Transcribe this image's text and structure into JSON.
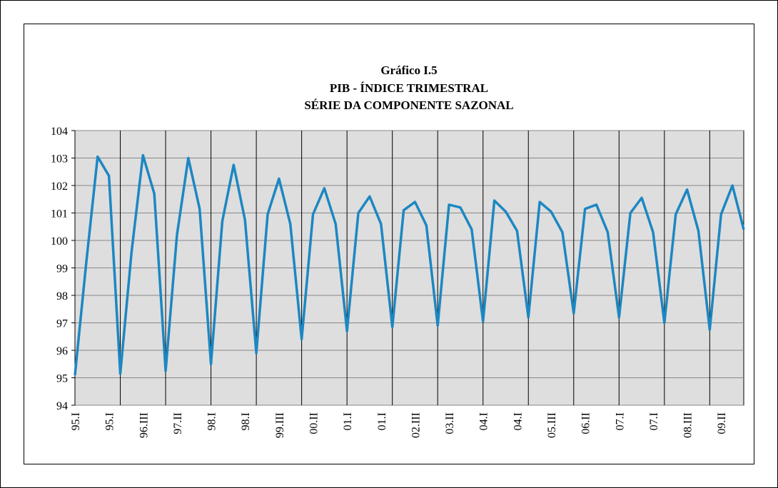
{
  "chart_data": {
    "type": "line",
    "title": [
      "Gráfico I.5",
      "PIB - ÍNDICE TRIMESTRAL",
      "SÉRIE DA COMPONENTE SAZONAL"
    ],
    "categories": [
      "95.I",
      null,
      null,
      "95.I",
      null,
      null,
      "96.III",
      null,
      null,
      "97.II",
      null,
      null,
      "98.I",
      null,
      null,
      "98.I",
      null,
      null,
      "99.III",
      null,
      null,
      "00.II",
      null,
      null,
      "01.I",
      null,
      null,
      "01.I",
      null,
      null,
      "02.III",
      null,
      null,
      "03.II",
      null,
      null,
      "04.I",
      null,
      null,
      "04.I",
      null,
      null,
      "05.III",
      null,
      null,
      "06.II",
      null,
      null,
      "07.I",
      null,
      null,
      "07.I",
      null,
      null,
      "08.III",
      null,
      null,
      "09.II",
      null,
      null
    ],
    "series": [
      {
        "color": "#1c87c2",
        "values": [
          95.1,
          99.2,
          103.05,
          102.35,
          95.15,
          99.6,
          103.1,
          101.7,
          95.25,
          100.2,
          103.0,
          101.15,
          95.5,
          100.7,
          102.75,
          100.75,
          95.9,
          100.95,
          102.25,
          100.6,
          96.4,
          100.95,
          101.9,
          100.6,
          96.7,
          101.0,
          101.6,
          100.6,
          96.85,
          101.1,
          101.4,
          100.55,
          96.9,
          101.3,
          101.2,
          100.4,
          97.05,
          101.45,
          101.05,
          100.35,
          97.2,
          101.4,
          101.05,
          100.3,
          97.35,
          101.15,
          101.3,
          100.3,
          97.2,
          101.0,
          101.55,
          100.3,
          97.0,
          100.95,
          101.85,
          100.35,
          96.75,
          100.95,
          102.0,
          100.4
        ]
      }
    ],
    "ylim": [
      94,
      104
    ],
    "yticks": [
      94,
      95,
      96,
      97,
      98,
      99,
      100,
      101,
      102,
      103,
      104
    ],
    "grid": true
  }
}
